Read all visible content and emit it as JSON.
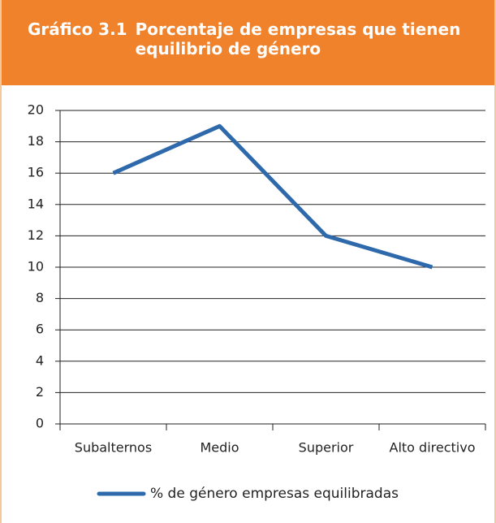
{
  "chart_data": {
    "type": "line",
    "title_label": "Gráfico 3.1",
    "title": "Porcentaje de empresas que tienen equilibrio de género",
    "categories": [
      "Subalternos",
      "Medio",
      "Superior",
      "Alto directivo"
    ],
    "series": [
      {
        "name": "% de género empresas equilibradas",
        "color": "#2e6aab",
        "values": [
          16,
          19,
          12,
          10
        ]
      }
    ],
    "ylim": [
      0,
      20
    ],
    "yticks": [
      0,
      2,
      4,
      6,
      8,
      10,
      12,
      14,
      16,
      18,
      20
    ],
    "grid": true,
    "legend": "bottom"
  }
}
